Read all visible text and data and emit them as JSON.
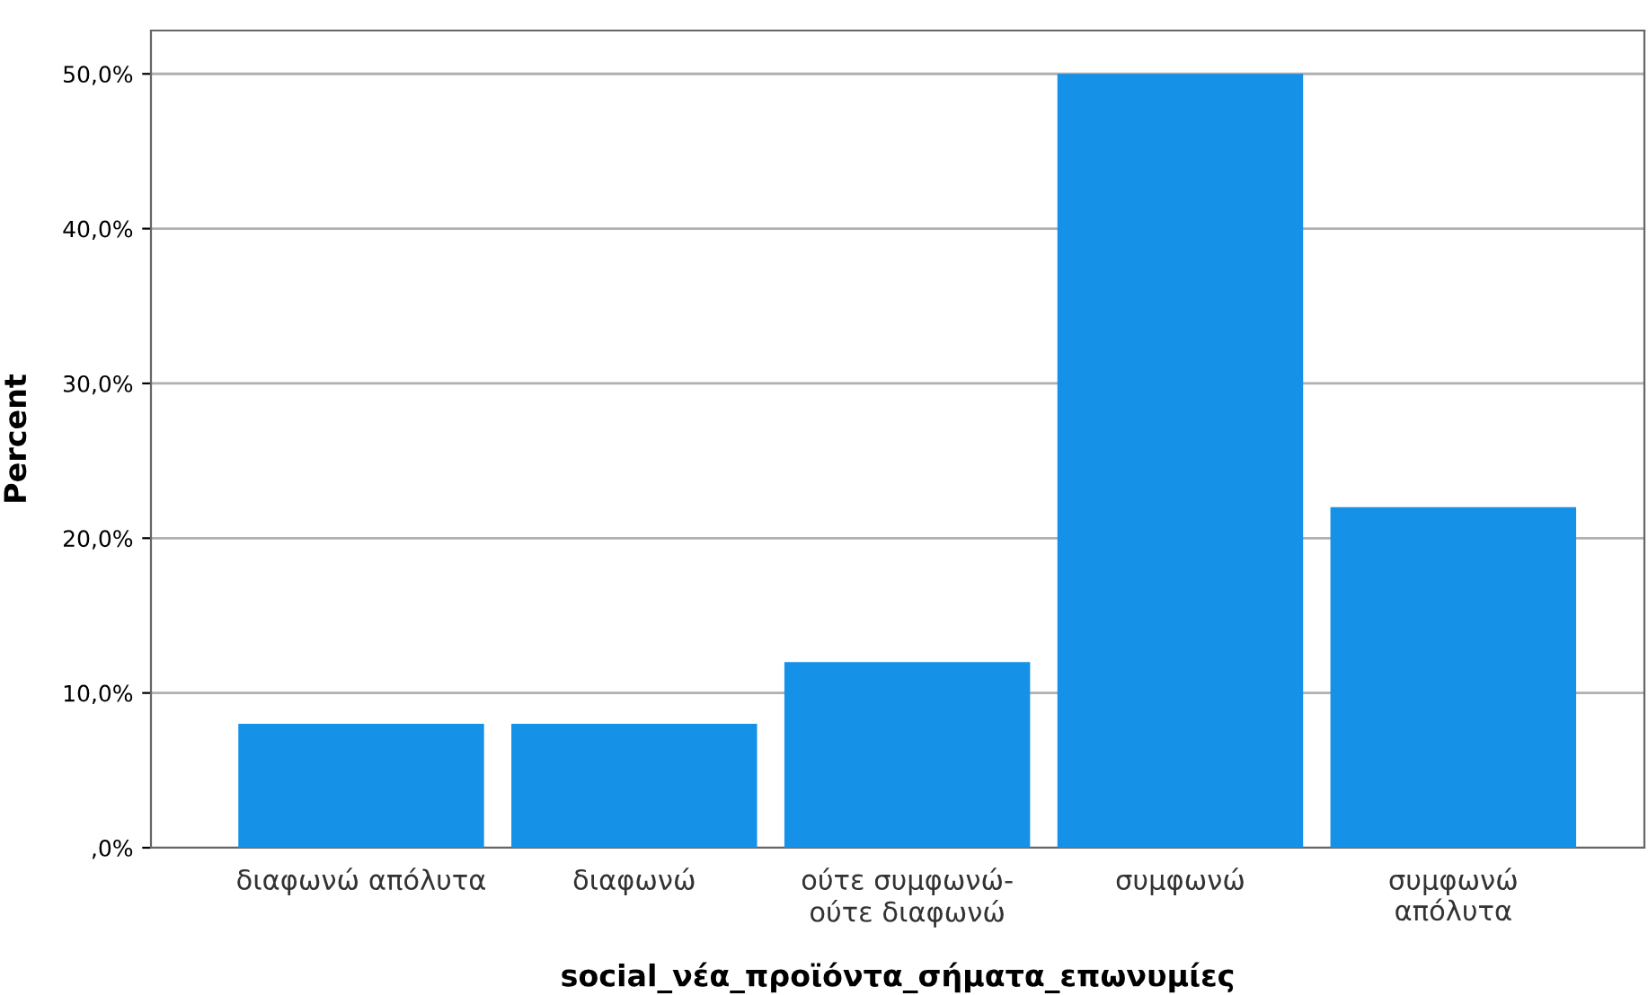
{
  "chart_data": {
    "type": "bar",
    "xlabel": "social_νέα_προϊόντα_σήματα_επωνυμίες",
    "ylabel": "Percent",
    "categories": [
      "διαφωνώ απόλυτα",
      "διαφωνώ",
      "ούτε συμφωνώ-\nούτε διαφωνώ",
      "συμφωνώ",
      "συμφωνώ\nαπόλυτα"
    ],
    "values": [
      8,
      8,
      12,
      50,
      22
    ],
    "color": "#1591e8",
    "ylim": [
      0,
      52.8
    ],
    "yticks": [
      {
        "value": 0,
        "label": ",0%"
      },
      {
        "value": 10,
        "label": "10,0%"
      },
      {
        "value": 20,
        "label": "20,0%"
      },
      {
        "value": 30,
        "label": "30,0%"
      },
      {
        "value": 40,
        "label": "40,0%"
      },
      {
        "value": 50,
        "label": "50,0%"
      }
    ],
    "grid": "y"
  }
}
